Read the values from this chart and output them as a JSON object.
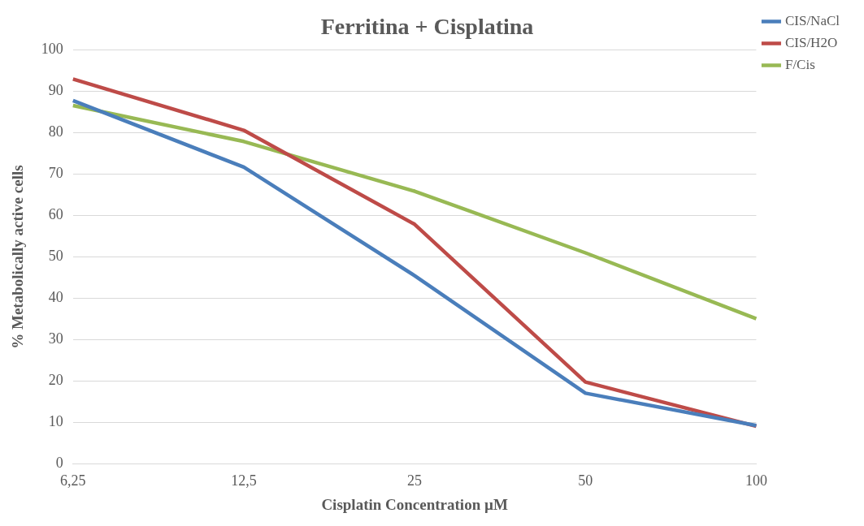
{
  "chart_data": {
    "type": "line",
    "title": "Ferritina + Cisplatina",
    "xlabel": "Cisplatin Concentration µM",
    "ylabel": "% Metabolically active cells",
    "categories": [
      "6,25",
      "12,5",
      "25",
      "50",
      "100"
    ],
    "series": [
      {
        "name": "CIS/NaCl",
        "color": "#4a7ebb",
        "values": [
          87.8,
          71.7,
          45.5,
          17.1,
          9.3
        ]
      },
      {
        "name": "CIS/H2O",
        "color": "#be4b48",
        "values": [
          93.0,
          80.6,
          57.9,
          19.8,
          9.1
        ]
      },
      {
        "name": "F/Cis",
        "color": "#98b954",
        "values": [
          86.6,
          77.9,
          65.9,
          51.0,
          35.1
        ]
      }
    ],
    "ylim": [
      0,
      100
    ],
    "yticks": [
      0,
      10,
      20,
      30,
      40,
      50,
      60,
      70,
      80,
      90,
      100
    ],
    "grid": "y",
    "legend": "top right",
    "marker": "none"
  }
}
